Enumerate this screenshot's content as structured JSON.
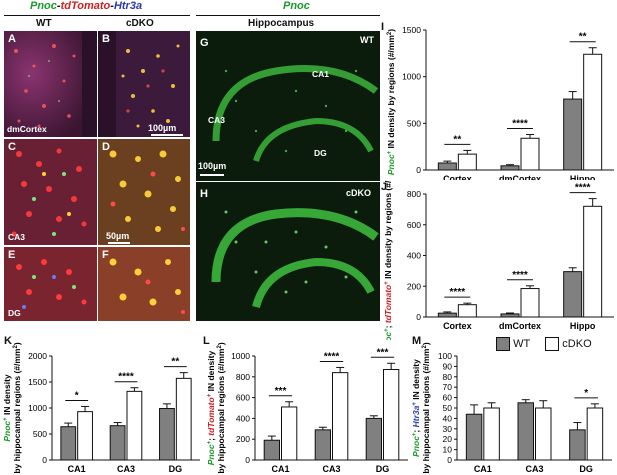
{
  "header": {
    "left_title_parts": [
      "Pnoc",
      "-",
      "tdTomato",
      "-",
      "Htr3a"
    ],
    "left_title_colors": [
      "#1a9a2a",
      "#111111",
      "#d21e1e",
      "#111111",
      "#2a3ab0"
    ],
    "middle_title": "Pnoc",
    "middle_title_color": "#1a9a2a"
  },
  "micrographs": {
    "col_wt": "WT",
    "col_cdko": "cDKO",
    "hippocampus_title": "Hippocampus",
    "panels": [
      "A",
      "B",
      "C",
      "D",
      "E",
      "F",
      "G",
      "H"
    ],
    "region_labels": {
      "A": "dmCortex",
      "C": "CA3",
      "E": "DG"
    },
    "scale_bars": {
      "B": "100µm",
      "D": "50µm",
      "G": "100µm"
    },
    "g_labels": {
      "genotype": "WT",
      "ca1": "CA1",
      "ca3": "CA3",
      "dg": "DG"
    },
    "h_labels": {
      "genotype": "cDKO"
    }
  },
  "legend": {
    "wt": "WT",
    "cdko": "cDKO",
    "wt_color": "#808080",
    "cdko_color": "#ffffff"
  },
  "chart_data": [
    {
      "id": "I",
      "type": "bar",
      "ylabel_parts": [
        "Pnoc",
        "+",
        " IN density by regions (#/mm",
        "2",
        ")"
      ],
      "categories": [
        "Cortex",
        "dmCortex",
        "Hippo"
      ],
      "yticks": [
        "0",
        "500",
        "1000",
        "1500"
      ],
      "ylim": [
        0,
        1500
      ],
      "series": [
        {
          "name": "WT",
          "values": [
            75,
            45,
            760
          ],
          "errors": [
            20,
            12,
            80
          ]
        },
        {
          "name": "cDKO",
          "values": [
            170,
            340,
            1240
          ],
          "errors": [
            40,
            40,
            70
          ]
        }
      ],
      "significance": [
        "**",
        "****",
        "**"
      ]
    },
    {
      "id": "J",
      "type": "bar",
      "ylabel_parts": [
        "Pnoc",
        "+",
        "; ",
        "tdTomato",
        "+",
        " IN density by regions (#/mm",
        "2",
        ")"
      ],
      "categories": [
        "Cortex",
        "dmCortex",
        "Hippo"
      ],
      "yticks": [
        "0",
        "200",
        "400",
        "600",
        "800"
      ],
      "ylim": [
        0,
        800
      ],
      "series": [
        {
          "name": "WT",
          "values": [
            25,
            20,
            295
          ],
          "errors": [
            8,
            6,
            25
          ]
        },
        {
          "name": "cDKO",
          "values": [
            80,
            185,
            720
          ],
          "errors": [
            10,
            18,
            50
          ]
        }
      ],
      "significance": [
        "****",
        "****",
        "****"
      ]
    },
    {
      "id": "K",
      "type": "bar",
      "ylabel_parts": [
        "Pnoc",
        "+",
        " IN density",
        "by hippocampal regions (#/mm",
        "2",
        ")"
      ],
      "categories": [
        "CA1",
        "CA3",
        "DG"
      ],
      "yticks": [
        "0",
        "500",
        "1000",
        "1500",
        "2000"
      ],
      "ylim": [
        0,
        2000
      ],
      "series": [
        {
          "name": "WT",
          "values": [
            640,
            660,
            990
          ],
          "errors": [
            70,
            60,
            90
          ]
        },
        {
          "name": "cDKO",
          "values": [
            930,
            1320,
            1570
          ],
          "errors": [
            100,
            70,
            110
          ]
        }
      ],
      "significance": [
        "*",
        "****",
        "**"
      ]
    },
    {
      "id": "L",
      "type": "bar",
      "ylabel_parts": [
        "Pnoc",
        "+",
        "; ",
        "tdTomato",
        "+",
        " IN density",
        "by hippocampal regions (#/mm",
        "2",
        ")"
      ],
      "categories": [
        "CA1",
        "CA3",
        "DG"
      ],
      "yticks": [
        "0",
        "200",
        "400",
        "600",
        "800",
        "1000"
      ],
      "ylim": [
        0,
        1000
      ],
      "series": [
        {
          "name": "WT",
          "values": [
            190,
            290,
            400
          ],
          "errors": [
            40,
            25,
            25
          ]
        },
        {
          "name": "cDKO",
          "values": [
            510,
            840,
            870
          ],
          "errors": [
            50,
            50,
            60
          ]
        }
      ],
      "significance": [
        "***",
        "****",
        "***"
      ]
    },
    {
      "id": "M",
      "type": "bar",
      "ylabel_parts": [
        "Pnoc",
        "+",
        "; ",
        "Htr3a",
        "+",
        " IN density",
        "by hippocampal regions (#/mm",
        "2",
        ")"
      ],
      "categories": [
        "CA1",
        "CA3",
        "DG"
      ],
      "yticks": [
        "0",
        "10",
        "20",
        "30",
        "40",
        "50",
        "60",
        "70",
        "80",
        "90",
        "100"
      ],
      "ylim": [
        0,
        100
      ],
      "series": [
        {
          "name": "WT",
          "values": [
            44,
            55,
            29
          ],
          "errors": [
            9,
            3,
            7
          ]
        },
        {
          "name": "cDKO",
          "values": [
            50,
            50,
            50
          ],
          "errors": [
            5,
            7,
            4
          ]
        }
      ],
      "significance": [
        "",
        "",
        "*"
      ]
    }
  ]
}
